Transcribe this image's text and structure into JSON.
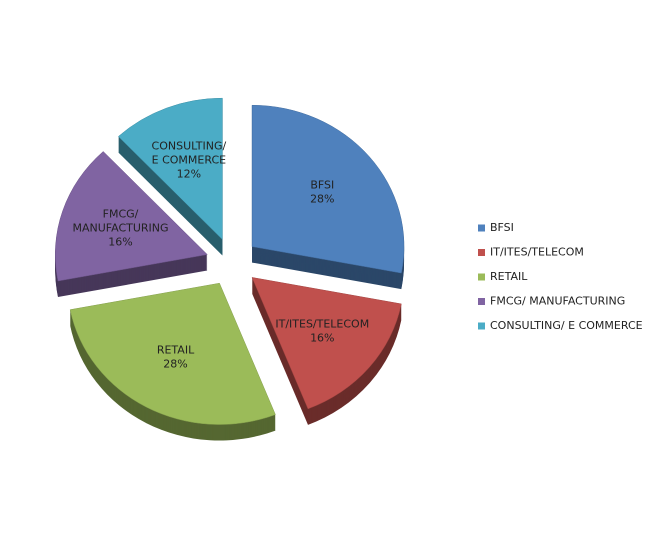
{
  "chart_data": {
    "type": "pie",
    "categories": [
      "BFSI",
      "IT/ITES/TELECOM",
      "RETAIL",
      "FMCG/ MANUFACTURING",
      "CONSULTING/  E COMMERCE"
    ],
    "values": [
      28,
      16,
      28,
      16,
      12
    ],
    "value_labels": [
      "28%",
      "16%",
      "28%",
      "16%",
      "12%"
    ],
    "slice_labels": [
      [
        "BFSI"
      ],
      [
        "IT/ITES/TELECOM"
      ],
      [
        "RETAIL"
      ],
      [
        "FMCG/",
        "MANUFACTURING"
      ],
      [
        "CONSULTING/",
        "E COMMERCE"
      ]
    ],
    "colors": [
      "#4f81bd",
      "#c0504d",
      "#9bbb59",
      "#8064a2",
      "#4bacc6"
    ],
    "legend": "right"
  }
}
